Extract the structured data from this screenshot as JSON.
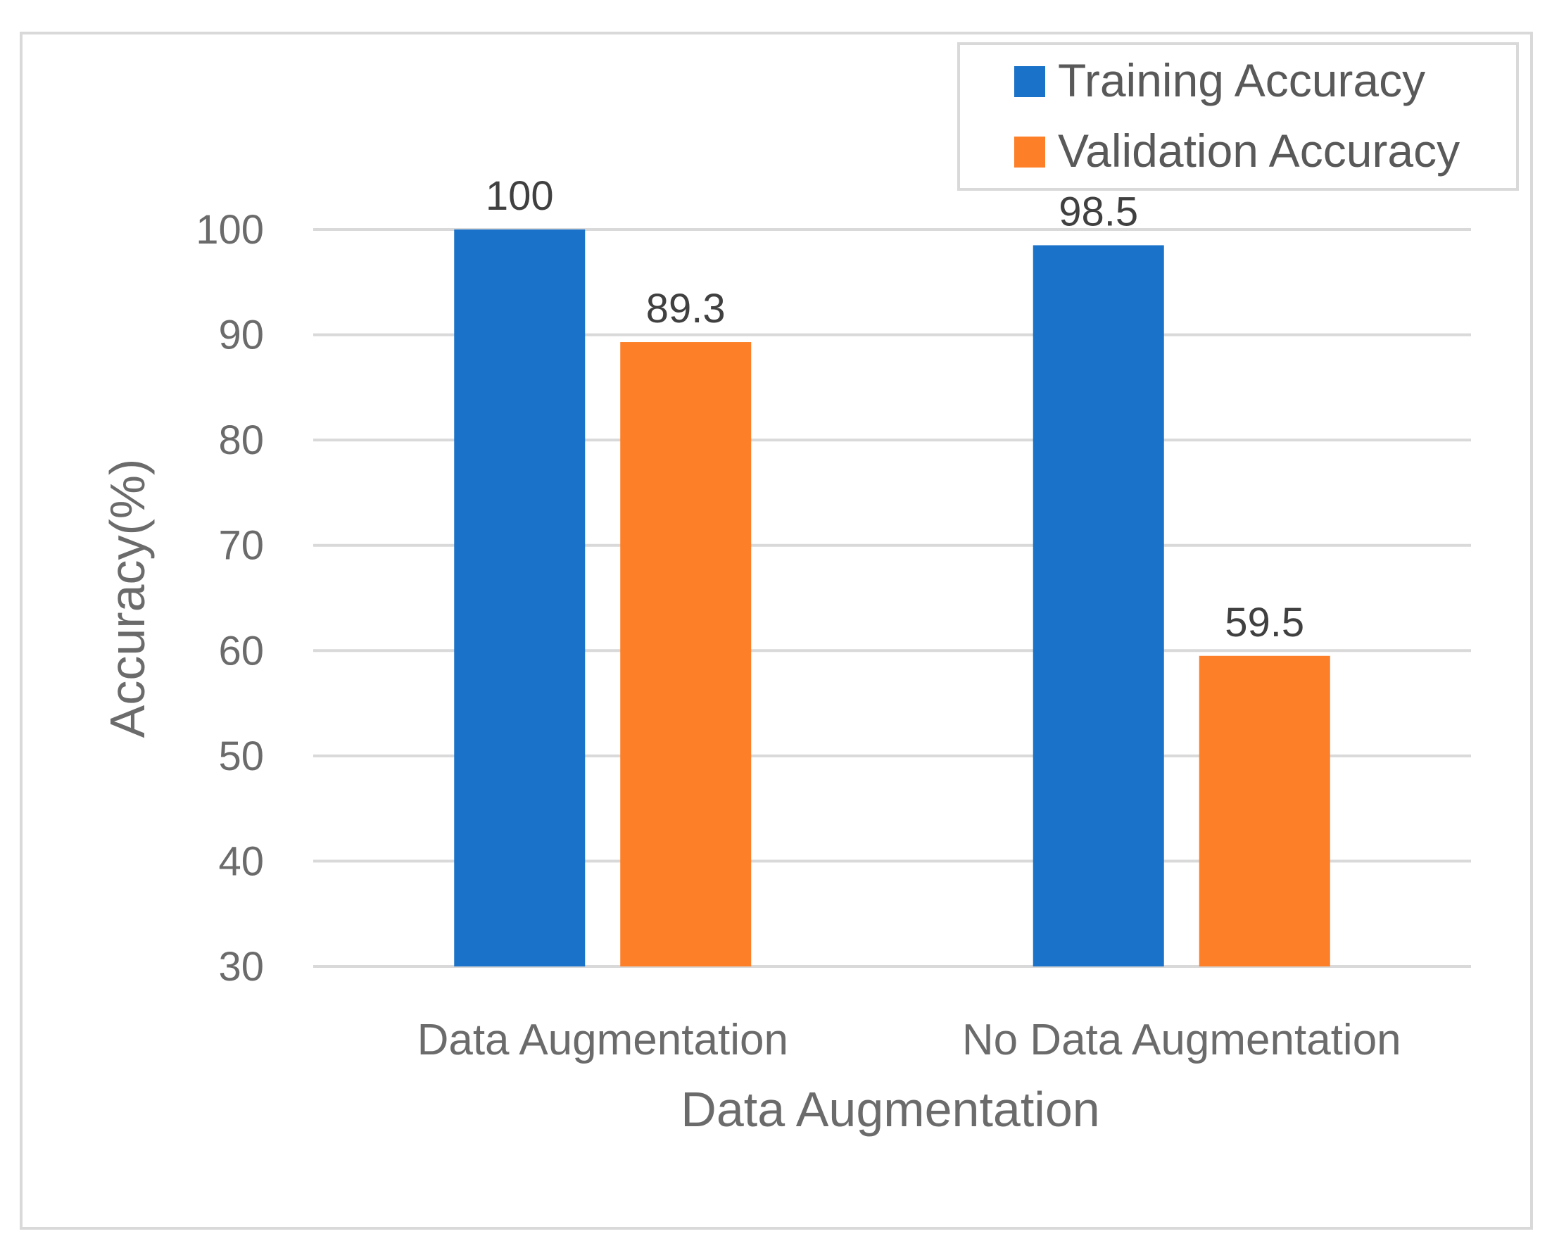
{
  "chart_data": {
    "type": "bar",
    "title": "",
    "xlabel": "Data Augmentation",
    "ylabel": "Accuracy(%)",
    "categories": [
      "Data Augmentation",
      "No Data Augmentation"
    ],
    "series": [
      {
        "name": "Training Accuracy",
        "values": [
          100,
          98.5
        ],
        "color": "#1a73c9"
      },
      {
        "name": "Validation Accuracy",
        "values": [
          89.3,
          59.5
        ],
        "color": "#fd7f28"
      }
    ],
    "data_labels": [
      [
        "100",
        "98.5"
      ],
      [
        "89.3",
        "59.5"
      ]
    ],
    "ylim": [
      30,
      100
    ],
    "yticks": [
      "30",
      "40",
      "50",
      "60",
      "70",
      "80",
      "90",
      "100"
    ],
    "grid": true,
    "legend_position": "top-right"
  }
}
